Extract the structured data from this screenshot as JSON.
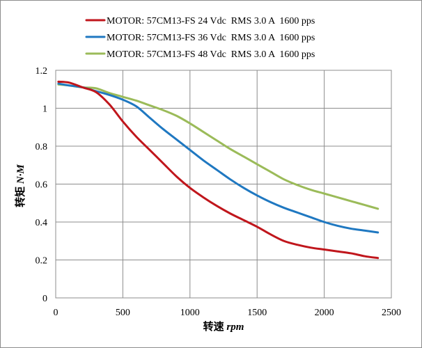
{
  "chart_data": {
    "type": "line",
    "xlabel": {
      "prefix": "转速 ",
      "unit": "rpm"
    },
    "ylabel": {
      "prefix": "转矩 ",
      "unit": "N·M"
    },
    "xlim": [
      0,
      2500
    ],
    "ylim": [
      0,
      1.2
    ],
    "x_ticks": [
      0,
      500,
      1000,
      1500,
      2000,
      2500
    ],
    "y_ticks": [
      0,
      0.2,
      0.4,
      0.6,
      0.8,
      1,
      1.2
    ],
    "x_tick_labels": [
      "0",
      "500",
      "1000",
      "1500",
      "2000",
      "2500"
    ],
    "y_tick_labels": [
      "0",
      "0.2",
      "0.4",
      "0.6",
      "0.8",
      "1",
      "1.2"
    ],
    "grid": true,
    "legend_position": "top",
    "series": [
      {
        "name": "MOTOR: 57CM13-FS 24 Vdc  RMS 3.0 A  1600 pps",
        "color": "#c0161c",
        "points": [
          [
            20,
            1.14
          ],
          [
            100,
            1.135
          ],
          [
            200,
            1.11
          ],
          [
            300,
            1.085
          ],
          [
            400,
            1.02
          ],
          [
            500,
            0.93
          ],
          [
            600,
            0.85
          ],
          [
            700,
            0.78
          ],
          [
            800,
            0.71
          ],
          [
            900,
            0.64
          ],
          [
            1000,
            0.58
          ],
          [
            1100,
            0.53
          ],
          [
            1200,
            0.485
          ],
          [
            1300,
            0.445
          ],
          [
            1400,
            0.41
          ],
          [
            1500,
            0.375
          ],
          [
            1600,
            0.335
          ],
          [
            1700,
            0.3
          ],
          [
            1800,
            0.28
          ],
          [
            1900,
            0.265
          ],
          [
            2000,
            0.255
          ],
          [
            2100,
            0.245
          ],
          [
            2200,
            0.235
          ],
          [
            2300,
            0.22
          ],
          [
            2400,
            0.21
          ]
        ]
      },
      {
        "name": "MOTOR: 57CM13-FS 36 Vdc  RMS 3.0 A  1600 pps",
        "color": "#1f78c1",
        "points": [
          [
            20,
            1.13
          ],
          [
            100,
            1.12
          ],
          [
            200,
            1.11
          ],
          [
            300,
            1.09
          ],
          [
            400,
            1.07
          ],
          [
            500,
            1.045
          ],
          [
            600,
            1.01
          ],
          [
            700,
            0.95
          ],
          [
            800,
            0.89
          ],
          [
            900,
            0.835
          ],
          [
            1000,
            0.78
          ],
          [
            1100,
            0.725
          ],
          [
            1200,
            0.675
          ],
          [
            1300,
            0.625
          ],
          [
            1400,
            0.58
          ],
          [
            1500,
            0.54
          ],
          [
            1600,
            0.505
          ],
          [
            1700,
            0.475
          ],
          [
            1800,
            0.45
          ],
          [
            1900,
            0.425
          ],
          [
            2000,
            0.4
          ],
          [
            2100,
            0.38
          ],
          [
            2200,
            0.365
          ],
          [
            2300,
            0.355
          ],
          [
            2400,
            0.345
          ]
        ]
      },
      {
        "name": "MOTOR: 57CM13-FS 48 Vdc  RMS 3.0 A  1600 pps",
        "color": "#9bbb59",
        "points": [
          [
            20,
            1.125
          ],
          [
            100,
            1.12
          ],
          [
            200,
            1.11
          ],
          [
            300,
            1.105
          ],
          [
            400,
            1.08
          ],
          [
            500,
            1.06
          ],
          [
            600,
            1.04
          ],
          [
            700,
            1.015
          ],
          [
            800,
            0.99
          ],
          [
            900,
            0.96
          ],
          [
            1000,
            0.92
          ],
          [
            1100,
            0.875
          ],
          [
            1200,
            0.83
          ],
          [
            1300,
            0.785
          ],
          [
            1400,
            0.745
          ],
          [
            1500,
            0.705
          ],
          [
            1600,
            0.665
          ],
          [
            1700,
            0.625
          ],
          [
            1800,
            0.595
          ],
          [
            1900,
            0.57
          ],
          [
            2000,
            0.55
          ],
          [
            2100,
            0.53
          ],
          [
            2200,
            0.51
          ],
          [
            2300,
            0.49
          ],
          [
            2400,
            0.47
          ]
        ]
      }
    ]
  }
}
